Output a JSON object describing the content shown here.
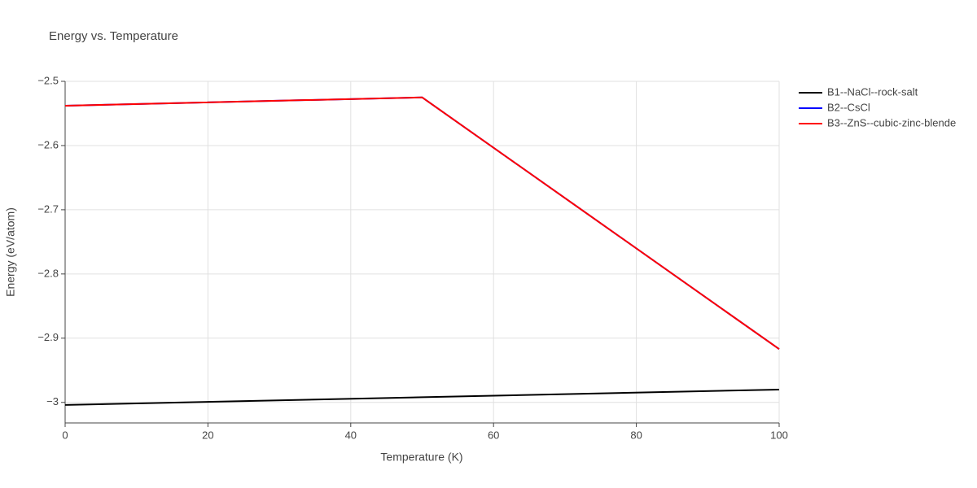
{
  "chart_data": {
    "type": "line",
    "title": "Energy vs. Temperature",
    "x_label": "Temperature (K)",
    "y_label": "Energy (eV/atom)",
    "x": [
      0,
      50,
      100
    ],
    "series": [
      {
        "name": "B1--NaCl--rock-salt",
        "color": "#000000",
        "values": [
          -3.004,
          -2.992,
          -2.98
        ]
      },
      {
        "name": "B2--CsCl",
        "color": "#0000ff",
        "values": [
          -2.538,
          -2.525,
          -2.917
        ]
      },
      {
        "name": "B3--ZnS--cubic-zinc-blende",
        "color": "#ff0000",
        "values": [
          -2.538,
          -2.525,
          -2.917
        ]
      }
    ],
    "xlim": [
      0,
      100
    ],
    "xticks": [
      0,
      20,
      40,
      60,
      80,
      100
    ],
    "ylim": [
      -3.032,
      -2.5
    ],
    "yticks": [
      {
        "value": -3,
        "label": "−3"
      },
      {
        "value": -2.9,
        "label": "−2.9"
      },
      {
        "value": -2.8,
        "label": "−2.8"
      },
      {
        "value": -2.7,
        "label": "−2.7"
      },
      {
        "value": -2.6,
        "label": "−2.6"
      },
      {
        "value": -2.5,
        "label": "−2.5"
      }
    ],
    "grid": true,
    "legend": "right"
  }
}
